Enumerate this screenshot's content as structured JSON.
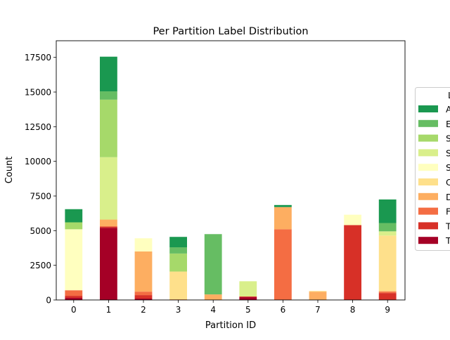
{
  "chart_data": {
    "type": "bar",
    "stacked": true,
    "title": "Per Partition Label Distribution",
    "xlabel": "Partition ID",
    "ylabel": "Count",
    "categories": [
      "0",
      "1",
      "2",
      "3",
      "4",
      "5",
      "6",
      "7",
      "8",
      "9"
    ],
    "ylim": [
      0,
      18700
    ],
    "yticks": [
      0,
      2500,
      5000,
      7500,
      10000,
      12500,
      15000,
      17500
    ],
    "ytick_labels": [
      "0",
      "2500",
      "5000",
      "7500",
      "10000",
      "12500",
      "15000",
      "17500"
    ],
    "legend": {
      "title": "L",
      "placement": "right (clipped)"
    },
    "series": [
      {
        "name": "T",
        "color": "#a50026",
        "values": [
          150,
          5200,
          100,
          0,
          0,
          200,
          0,
          0,
          0,
          0
        ]
      },
      {
        "name": "T",
        "color": "#d73027",
        "values": [
          150,
          100,
          250,
          0,
          0,
          50,
          0,
          0,
          5400,
          500
        ]
      },
      {
        "name": "F",
        "color": "#f46d43",
        "values": [
          400,
          0,
          250,
          0,
          0,
          0,
          5100,
          0,
          0,
          100
        ]
      },
      {
        "name": "D",
        "color": "#fdae61",
        "values": [
          0,
          500,
          2900,
          50,
          400,
          0,
          1600,
          600,
          0,
          50
        ]
      },
      {
        "name": "C",
        "color": "#fee08b",
        "values": [
          0,
          0,
          0,
          2000,
          0,
          0,
          0,
          50,
          0,
          4000
        ]
      },
      {
        "name": "S",
        "color": "#ffffbf",
        "values": [
          4400,
          0,
          950,
          0,
          0,
          0,
          0,
          0,
          750,
          0
        ]
      },
      {
        "name": "S",
        "color": "#d9ef8b",
        "values": [
          0,
          4500,
          0,
          0,
          0,
          1100,
          0,
          0,
          0,
          300
        ]
      },
      {
        "name": "S",
        "color": "#a6d96a",
        "values": [
          500,
          4150,
          0,
          1300,
          0,
          0,
          0,
          0,
          0,
          0
        ]
      },
      {
        "name": "E",
        "color": "#66bd63",
        "values": [
          0,
          600,
          0,
          450,
          4350,
          0,
          0,
          0,
          0,
          600
        ]
      },
      {
        "name": "A",
        "color": "#1a9850",
        "values": [
          950,
          2500,
          0,
          750,
          0,
          0,
          150,
          0,
          0,
          1700
        ]
      }
    ]
  }
}
